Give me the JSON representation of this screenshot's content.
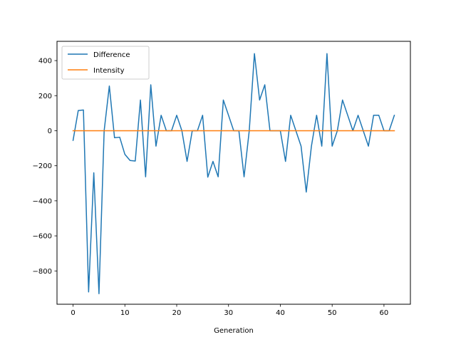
{
  "chart_data": {
    "type": "line",
    "title": "",
    "xlabel": "Generation",
    "ylabel": "",
    "xlim": [
      -3.1,
      65.1
    ],
    "ylim": [
      -990,
      510
    ],
    "xticks": [
      0,
      10,
      20,
      30,
      40,
      50,
      60
    ],
    "yticks": [
      -800,
      -600,
      -400,
      -200,
      0,
      200,
      400
    ],
    "ytick_labels": [
      "−800",
      "−600",
      "−400",
      "−200",
      "0",
      "200",
      "400"
    ],
    "grid": false,
    "legend": {
      "position": "upper-left",
      "entries": [
        "Difference",
        "Intensity"
      ]
    },
    "series": [
      {
        "name": "Difference",
        "color": "#1f77b4",
        "x": [
          0,
          1,
          2,
          3,
          4,
          5,
          6,
          7,
          8,
          9,
          10,
          11,
          12,
          13,
          14,
          15,
          16,
          17,
          18,
          19,
          20,
          21,
          22,
          23,
          24,
          25,
          26,
          27,
          28,
          29,
          30,
          31,
          32,
          33,
          34,
          35,
          36,
          37,
          38,
          39,
          40,
          41,
          42,
          43,
          44,
          45,
          46,
          47,
          48,
          49,
          50,
          51,
          52,
          53,
          54,
          55,
          56,
          57,
          58,
          59,
          60,
          61,
          62
        ],
        "values": [
          -55,
          115,
          118,
          -920,
          -240,
          -930,
          0,
          255,
          -40,
          -37,
          -135,
          -170,
          -173,
          175,
          -263,
          262,
          -88,
          88,
          0,
          0,
          88,
          0,
          -175,
          0,
          0,
          88,
          -265,
          -175,
          -263,
          175,
          88,
          0,
          0,
          -263,
          0,
          440,
          175,
          262,
          0,
          0,
          0,
          -175,
          88,
          0,
          -88,
          -350,
          -88,
          88,
          -88,
          440,
          -88,
          0,
          175,
          88,
          0,
          88,
          0,
          -88,
          88,
          88,
          0,
          0,
          88
        ]
      },
      {
        "name": "Intensity",
        "color": "#ff7f0e",
        "x": [
          0,
          62
        ],
        "values": [
          0,
          0
        ]
      }
    ]
  }
}
